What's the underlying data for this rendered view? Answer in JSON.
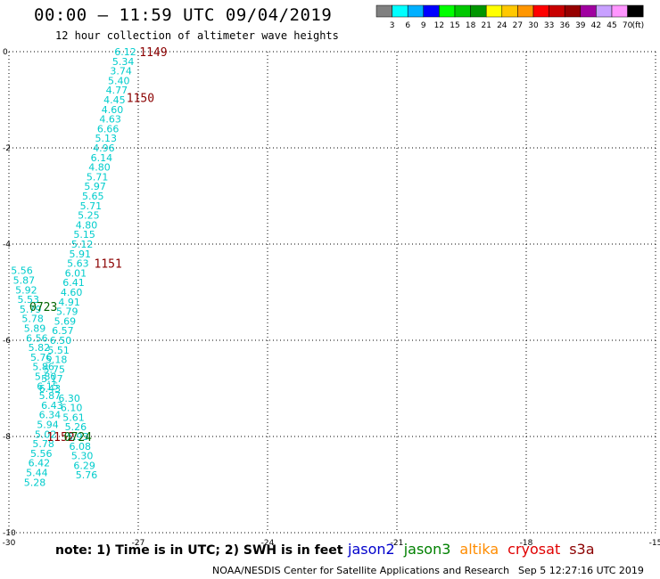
{
  "header": {
    "title": "00:00 – 11:59 UTC 09/04/2019",
    "subtitle": "12 hour collection of altimeter wave heights"
  },
  "color_scale": {
    "ticks": [
      "3",
      "6",
      "9",
      "12",
      "15",
      "18",
      "21",
      "24",
      "27",
      "30",
      "33",
      "36",
      "39",
      "42",
      "45",
      "70"
    ],
    "unit": "(ft)",
    "colors": [
      "#808080",
      "#00ffff",
      "#00b0ff",
      "#0000ff",
      "#00ff00",
      "#00c800",
      "#009600",
      "#ffff00",
      "#ffc800",
      "#ff9600",
      "#ff0000",
      "#c80000",
      "#960000",
      "#a000a0",
      "#c8a0ff",
      "#ff96ff",
      "#000000"
    ]
  },
  "satellites": [
    {
      "name": "jason2",
      "color": "#0000cc"
    },
    {
      "name": "jason3",
      "color": "#008000"
    },
    {
      "name": "altika",
      "color": "#ff8c00"
    },
    {
      "name": "cryosat",
      "color": "#e00000"
    },
    {
      "name": "s3a",
      "color": "#8b0000"
    }
  ],
  "footer": {
    "note": "note:  1) Time is in UTC;  2) SWH is in feet",
    "credit": "NOAA/NESDIS Center for Satellite Applications and Research",
    "timestamp": "Sep  5 12:27:16 UTC 2019"
  },
  "chart_data": {
    "type": "scatter",
    "title": "12 hour collection of altimeter wave heights",
    "xlim": [
      -30,
      -15
    ],
    "ylim": [
      -10,
      0
    ],
    "x_ticks": [
      "-30",
      "-27",
      "-24",
      "-21",
      "-18",
      "-15"
    ],
    "y_ticks": [
      "0",
      "-2",
      "-4",
      "-6",
      "-8",
      "-10"
    ],
    "grid": true,
    "value_color": "#00cccc",
    "points": [
      {
        "x": -27.3,
        "y": 0.0,
        "v": "6.12"
      },
      {
        "x": -27.35,
        "y": -0.2,
        "v": "5.34"
      },
      {
        "x": -27.4,
        "y": -0.4,
        "v": "3.74"
      },
      {
        "x": -27.45,
        "y": -0.6,
        "v": "5.40"
      },
      {
        "x": -27.5,
        "y": -0.8,
        "v": "4.77"
      },
      {
        "x": -27.55,
        "y": -1.0,
        "v": "4.45"
      },
      {
        "x": -27.6,
        "y": -1.2,
        "v": "4.60"
      },
      {
        "x": -27.65,
        "y": -1.4,
        "v": "4.63"
      },
      {
        "x": -27.7,
        "y": -1.6,
        "v": "6.66"
      },
      {
        "x": -27.75,
        "y": -1.8,
        "v": "5.13"
      },
      {
        "x": -27.8,
        "y": -2.0,
        "v": "4.96"
      },
      {
        "x": -27.85,
        "y": -2.2,
        "v": "6.14"
      },
      {
        "x": -27.9,
        "y": -2.4,
        "v": "4.80"
      },
      {
        "x": -27.95,
        "y": -2.6,
        "v": "5.71"
      },
      {
        "x": -28.0,
        "y": -2.8,
        "v": "5.97"
      },
      {
        "x": -28.05,
        "y": -3.0,
        "v": "5.65"
      },
      {
        "x": -28.1,
        "y": -3.2,
        "v": "5.71"
      },
      {
        "x": -28.15,
        "y": -3.4,
        "v": "5.25"
      },
      {
        "x": -28.2,
        "y": -3.6,
        "v": "4.80"
      },
      {
        "x": -28.25,
        "y": -3.8,
        "v": "5.15"
      },
      {
        "x": -28.3,
        "y": -4.0,
        "v": "5.12"
      },
      {
        "x": -28.35,
        "y": -4.2,
        "v": "5.91"
      },
      {
        "x": -28.4,
        "y": -4.4,
        "v": "5.63"
      },
      {
        "x": -28.45,
        "y": -4.6,
        "v": "6.01"
      },
      {
        "x": -28.5,
        "y": -4.8,
        "v": "6.41"
      },
      {
        "x": -28.55,
        "y": -5.0,
        "v": "4.60"
      },
      {
        "x": -28.6,
        "y": -5.2,
        "v": "4.91"
      },
      {
        "x": -28.65,
        "y": -5.4,
        "v": "5.79"
      },
      {
        "x": -28.7,
        "y": -5.6,
        "v": "5.69"
      },
      {
        "x": -28.75,
        "y": -5.8,
        "v": "6.57"
      },
      {
        "x": -28.8,
        "y": -6.0,
        "v": "6.50"
      },
      {
        "x": -28.85,
        "y": -6.2,
        "v": "5.51"
      },
      {
        "x": -28.9,
        "y": -6.4,
        "v": "5.18"
      },
      {
        "x": -28.95,
        "y": -6.6,
        "v": "5.75"
      },
      {
        "x": -29.0,
        "y": -6.8,
        "v": "5.17"
      },
      {
        "x": -29.05,
        "y": -7.0,
        "v": "6.43"
      },
      {
        "x": -29.7,
        "y": -4.55,
        "v": "5.56"
      },
      {
        "x": -29.65,
        "y": -4.75,
        "v": "5.87"
      },
      {
        "x": -29.6,
        "y": -4.95,
        "v": "5.92"
      },
      {
        "x": -29.55,
        "y": -5.15,
        "v": "5.53"
      },
      {
        "x": -29.5,
        "y": -5.35,
        "v": "5.79"
      },
      {
        "x": -29.45,
        "y": -5.55,
        "v": "5.78"
      },
      {
        "x": -29.4,
        "y": -5.75,
        "v": "5.89"
      },
      {
        "x": -29.35,
        "y": -5.95,
        "v": "6.56"
      },
      {
        "x": -29.3,
        "y": -6.15,
        "v": "5.82"
      },
      {
        "x": -29.25,
        "y": -6.35,
        "v": "5.76"
      },
      {
        "x": -29.2,
        "y": -6.55,
        "v": "5.86"
      },
      {
        "x": -29.15,
        "y": -6.75,
        "v": "5.80"
      },
      {
        "x": -29.1,
        "y": -6.95,
        "v": "6.15"
      },
      {
        "x": -29.05,
        "y": -7.15,
        "v": "5.87"
      },
      {
        "x": -29.0,
        "y": -7.35,
        "v": "6.43"
      },
      {
        "x": -29.05,
        "y": -7.55,
        "v": "6.34"
      },
      {
        "x": -29.1,
        "y": -7.75,
        "v": "5.94"
      },
      {
        "x": -29.15,
        "y": -7.95,
        "v": "5.02"
      },
      {
        "x": -29.2,
        "y": -8.15,
        "v": "5.78"
      },
      {
        "x": -29.25,
        "y": -8.35,
        "v": "5.56"
      },
      {
        "x": -29.3,
        "y": -8.55,
        "v": "6.42"
      },
      {
        "x": -29.35,
        "y": -8.75,
        "v": "5.44"
      },
      {
        "x": -29.4,
        "y": -8.95,
        "v": "5.28"
      },
      {
        "x": -28.6,
        "y": -7.2,
        "v": "6.30"
      },
      {
        "x": -28.55,
        "y": -7.4,
        "v": "6.10"
      },
      {
        "x": -28.5,
        "y": -7.6,
        "v": "5.61"
      },
      {
        "x": -28.45,
        "y": -7.8,
        "v": "5.26"
      },
      {
        "x": -28.4,
        "y": -8.0,
        "v": "5.93"
      },
      {
        "x": -28.35,
        "y": -8.2,
        "v": "6.08"
      },
      {
        "x": -28.3,
        "y": -8.4,
        "v": "5.30"
      },
      {
        "x": -28.25,
        "y": -8.6,
        "v": "6.29"
      },
      {
        "x": -28.2,
        "y": -8.8,
        "v": "5.76"
      }
    ],
    "time_labels": [
      {
        "x": -26.65,
        "y": 0.0,
        "v": "1149",
        "color": "#8b0000"
      },
      {
        "x": -26.95,
        "y": -0.95,
        "v": "1150",
        "color": "#8b0000"
      },
      {
        "x": -27.7,
        "y": -4.4,
        "v": "1151",
        "color": "#8b0000"
      },
      {
        "x": -29.2,
        "y": -5.3,
        "v": "0723",
        "color": "#006400"
      },
      {
        "x": -28.8,
        "y": -8.0,
        "v": "1152",
        "color": "#8b0000"
      },
      {
        "x": -28.4,
        "y": -8.0,
        "v": "0724",
        "color": "#006400"
      }
    ]
  }
}
